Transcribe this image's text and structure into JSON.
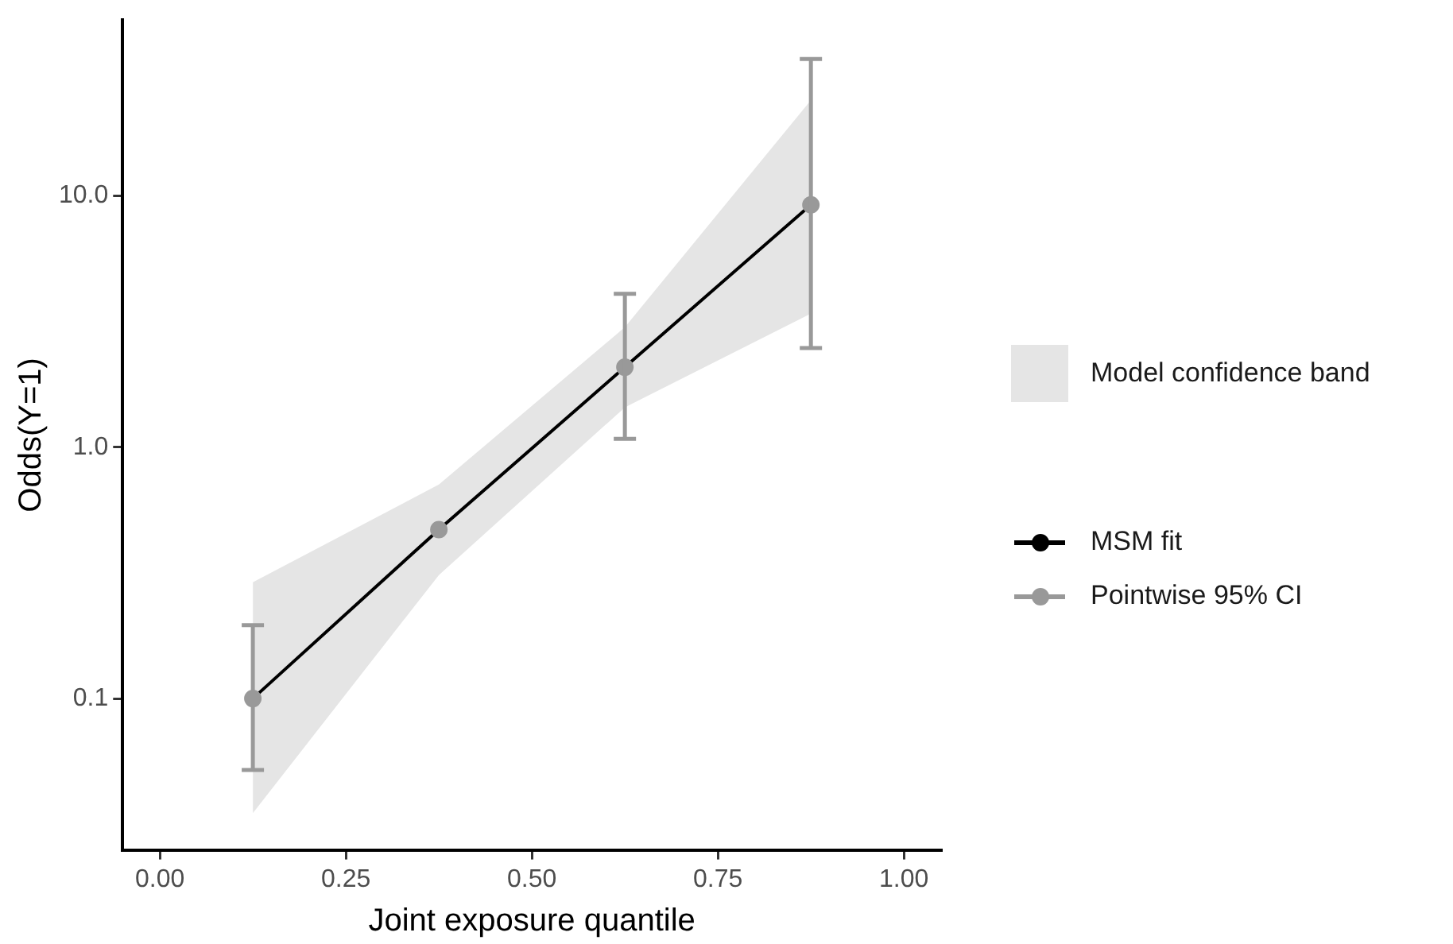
{
  "chart_data": {
    "type": "line",
    "xlabel": "Joint exposure quantile",
    "ylabel": "Odds(Y=1)",
    "x": [
      0.125,
      0.375,
      0.625,
      0.875
    ],
    "series": [
      {
        "name": "Model confidence band",
        "type": "area",
        "color": "#e5e5e5",
        "values": [
          null,
          null,
          null,
          null
        ],
        "lower": [
          0.035,
          0.31,
          1.44,
          3.4
        ],
        "upper": [
          0.29,
          0.71,
          3.0,
          24
        ]
      },
      {
        "name": "MSM fit",
        "color": "#000000",
        "values": [
          0.1,
          0.47,
          2.08,
          9.2
        ]
      },
      {
        "name": "Pointwise 95% CI",
        "type": "scatter",
        "color": "#999999",
        "values": [
          0.1,
          0.47,
          2.08,
          9.2
        ],
        "errors": [
          [
            0.052,
            0.196
          ],
          null,
          [
            1.08,
            4.07
          ],
          [
            2.48,
            35
          ]
        ]
      }
    ],
    "xlim": [
      -0.05,
      1.05
    ],
    "xticks": [
      {
        "value": 0,
        "label": "0.00"
      },
      {
        "value": 0.25,
        "label": "0.25"
      },
      {
        "value": 0.5,
        "label": "0.50"
      },
      {
        "value": 0.75,
        "label": "0.75"
      },
      {
        "value": 1,
        "label": "1.00"
      }
    ],
    "ylim": [
      0.025,
      50
    ],
    "yticks": [
      {
        "value": 0.1,
        "label": "0.1"
      },
      {
        "value": 1,
        "label": "1.0"
      },
      {
        "value": 10,
        "label": "10.0"
      }
    ],
    "log": "y",
    "grid": false,
    "legend": "right",
    "marker": "circle",
    "line_style": "solid"
  }
}
